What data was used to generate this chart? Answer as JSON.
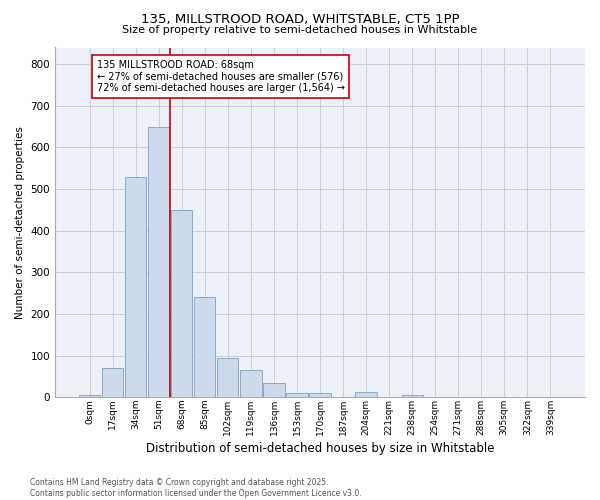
{
  "title_line1": "135, MILLSTROOD ROAD, WHITSTABLE, CT5 1PP",
  "title_line2": "Size of property relative to semi-detached houses in Whitstable",
  "xlabel": "Distribution of semi-detached houses by size in Whitstable",
  "ylabel": "Number of semi-detached properties",
  "bar_labels": [
    "0sqm",
    "17sqm",
    "34sqm",
    "51sqm",
    "68sqm",
    "85sqm",
    "102sqm",
    "119sqm",
    "136sqm",
    "153sqm",
    "170sqm",
    "187sqm",
    "204sqm",
    "221sqm",
    "238sqm",
    "254sqm",
    "271sqm",
    "288sqm",
    "305sqm",
    "322sqm",
    "339sqm"
  ],
  "bar_values": [
    5,
    70,
    530,
    650,
    450,
    240,
    95,
    65,
    35,
    10,
    10,
    0,
    12,
    0,
    5,
    0,
    0,
    0,
    0,
    0,
    0
  ],
  "bar_color": "#cddaeb",
  "bar_edge_color": "#7aa3c8",
  "red_line_index": 4,
  "highlight_line_color": "#cc0000",
  "annotation_text": "135 MILLSTROOD ROAD: 68sqm\n← 27% of semi-detached houses are smaller (576)\n72% of semi-detached houses are larger (1,564) →",
  "annotation_box_color": "#ffffff",
  "annotation_box_edge": "#cc0000",
  "ylim": [
    0,
    840
  ],
  "yticks": [
    0,
    100,
    200,
    300,
    400,
    500,
    600,
    700,
    800
  ],
  "grid_color": "#c5d2e0",
  "background_color": "#edf1f7",
  "footer_text": "Contains HM Land Registry data © Crown copyright and database right 2025.\nContains public sector information licensed under the Open Government Licence v3.0."
}
